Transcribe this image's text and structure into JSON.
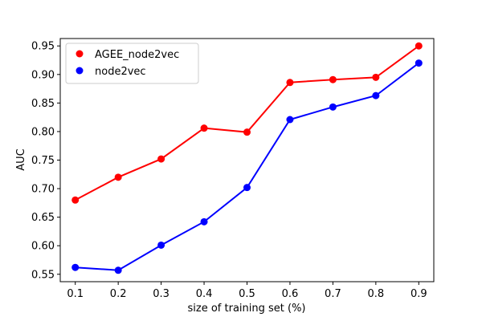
{
  "chart_data": {
    "type": "line",
    "x": [
      0.1,
      0.2,
      0.3,
      0.4,
      0.5,
      0.6,
      0.7,
      0.8,
      0.9
    ],
    "xlabel": "size of training set (%)",
    "ylabel": "AUC",
    "xlim": [
      0.065,
      0.935
    ],
    "ylim": [
      0.537,
      0.963
    ],
    "xticks": [
      "0.1",
      "0.2",
      "0.3",
      "0.4",
      "0.5",
      "0.6",
      "0.7",
      "0.8",
      "0.9"
    ],
    "yticks": [
      "0.55",
      "0.60",
      "0.65",
      "0.70",
      "0.75",
      "0.80",
      "0.85",
      "0.90",
      "0.95"
    ],
    "grid": false,
    "legend_position": "top-left",
    "series": [
      {
        "name": "AGEE_node2vec",
        "color": "#ff0000",
        "values": [
          0.68,
          0.72,
          0.752,
          0.806,
          0.799,
          0.886,
          0.891,
          0.895,
          0.95
        ]
      },
      {
        "name": "node2vec",
        "color": "#0000ff",
        "values": [
          0.562,
          0.557,
          0.601,
          0.642,
          0.702,
          0.821,
          0.843,
          0.863,
          0.92
        ]
      }
    ]
  }
}
